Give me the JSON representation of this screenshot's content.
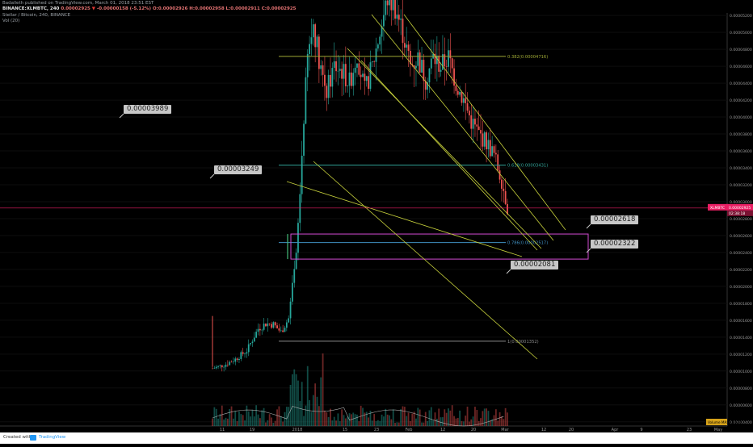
{
  "header": {
    "published_by": "Badalleth published on TradingView.com, March 01, 2018 23:51 EST",
    "symbol_line": "BINANCE:XLMBTC, 240",
    "price": "0.00002925",
    "change": "-0.00000158 (-5.12%)",
    "ohlc": "O:0.00002926 H:0.00002958 L:0.00002911 C:0.00002925",
    "title": "Stellar / Bitcoin, 240, BINANCE",
    "volume_label": "Vol (20)"
  },
  "callouts": [
    {
      "text": "0.00003989"
    },
    {
      "text": "0.00003249"
    },
    {
      "text": "0.00002618"
    },
    {
      "text": "0.00002322"
    },
    {
      "text": "0.00002081"
    }
  ],
  "chart_data": {
    "type": "candlestick",
    "y_axis_ticks": [
      "0.00005200",
      "0.00005000",
      "0.00004800",
      "0.00004600",
      "0.00004400",
      "0.00004200",
      "0.00004000",
      "0.00003800",
      "0.00003600",
      "0.00003400",
      "0.00003200",
      "0.00003000",
      "0.00002800",
      "0.00002600",
      "0.00002400",
      "0.00002200",
      "0.00002000",
      "0.00001800",
      "0.00001600",
      "0.00001400",
      "0.00001200",
      "0.00001000",
      "0.00000800",
      "0.00000600",
      "0.00000400"
    ],
    "x_axis_ticks": [
      "11",
      "19",
      "2018",
      "15",
      "23",
      "Feb",
      "12",
      "20",
      "Mar",
      "12",
      "20",
      "Apr",
      "9",
      "23",
      "May"
    ],
    "last_price_label": "XLMBTC",
    "last_price": "0.00002925",
    "countdown": "02:38:18",
    "fib_levels": [
      {
        "label": "0.382(0.00004716)",
        "value": 4.716e-05
      },
      {
        "label": "0.618(0.00003431)",
        "value": 3.431e-05
      },
      {
        "label": "0.786(0.00002517)",
        "value": 2.517e-05
      },
      {
        "label": "1(0.00001352)",
        "value": 1.352e-05
      }
    ],
    "zones": [
      {
        "from": 2.322e-05,
        "to": 2.618e-05
      }
    ],
    "volume_badge": "Volume MA: 1.502M",
    "price_path": [
      [
        0,
        1.03e-05
      ],
      [
        3,
        1.05e-05
      ],
      [
        7,
        1.08e-05
      ],
      [
        12,
        1.14e-05
      ],
      [
        18,
        1.24e-05
      ],
      [
        24,
        1.5e-05
      ],
      [
        28,
        1.56e-05
      ],
      [
        32,
        1.55e-05
      ],
      [
        36,
        1.46e-05
      ],
      [
        40,
        1.62e-05
      ],
      [
        44,
        2.35e-05
      ],
      [
        46,
        3.1e-05
      ],
      [
        48,
        4e-05
      ],
      [
        50,
        4.7e-05
      ],
      [
        53,
        5.1e-05
      ],
      [
        56,
        4.7e-05
      ],
      [
        60,
        4.3e-05
      ],
      [
        64,
        4.6e-05
      ],
      [
        68,
        4.55e-05
      ],
      [
        72,
        4.4e-05
      ],
      [
        76,
        4.75e-05
      ],
      [
        80,
        4.3e-05
      ],
      [
        84,
        4.6e-05
      ],
      [
        88,
        5e-05
      ],
      [
        92,
        5.4e-05
      ],
      [
        96,
        5.3e-05
      ],
      [
        100,
        5e-05
      ],
      [
        104,
        4.6e-05
      ],
      [
        108,
        4.7e-05
      ],
      [
        112,
        4.45e-05
      ],
      [
        116,
        4.7e-05
      ],
      [
        120,
        4.6e-05
      ],
      [
        124,
        4.7e-05
      ],
      [
        128,
        4.4e-05
      ],
      [
        132,
        4.2e-05
      ],
      [
        136,
        3.95e-05
      ],
      [
        140,
        3.8e-05
      ],
      [
        144,
        3.7e-05
      ],
      [
        148,
        3.55e-05
      ],
      [
        152,
        3.25e-05
      ],
      [
        155,
        2.93e-05
      ]
    ]
  },
  "colors": {
    "up": "#26a69a",
    "down": "#ef5350",
    "fib_382": "#9ea835",
    "fib_618": "#33a69a",
    "fib_786": "#3f8fc0",
    "fib_1": "#8a8a8a",
    "zone": "#d24bd2",
    "trend": "#c8d23c",
    "last_price": "#e91e63"
  },
  "footer": {
    "created_with": "Created with",
    "brand": "TradingView"
  }
}
